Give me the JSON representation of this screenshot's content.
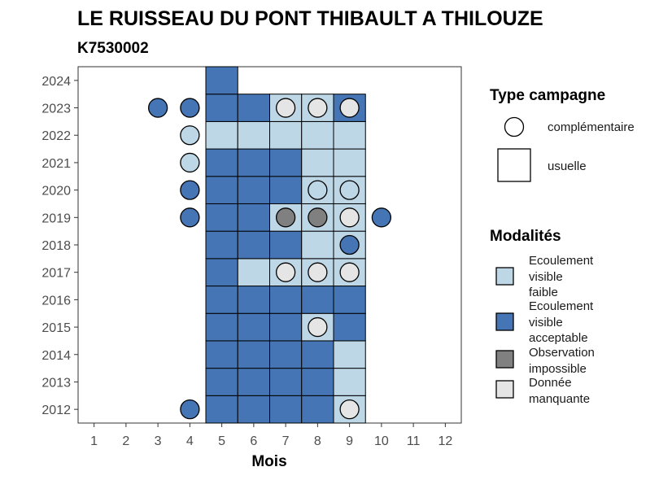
{
  "chart_data": {
    "type": "heatmap",
    "title": "LE RUISSEAU DU PONT THIBAULT A THILOUZE",
    "subtitle": "K7530002",
    "xlabel": "Mois",
    "ylabel": "",
    "x_ticks": [
      "1",
      "2",
      "3",
      "4",
      "5",
      "6",
      "7",
      "8",
      "9",
      "10",
      "11",
      "12"
    ],
    "y_ticks": [
      "2012",
      "2013",
      "2014",
      "2015",
      "2016",
      "2017",
      "2018",
      "2019",
      "2020",
      "2021",
      "2022",
      "2023",
      "2024"
    ],
    "xlim": [
      0.5,
      12.5
    ],
    "ylim": [
      2011.5,
      2024.5
    ],
    "colors": {
      "faible": "#bdd7e7",
      "acceptable": "#4575b4",
      "impossible": "#808080",
      "manquante": "#e5e5e5"
    },
    "legend_type": {
      "title": "Type campagne",
      "items": [
        {
          "label": "complémentaire",
          "shape": "circle"
        },
        {
          "label": "usuelle",
          "shape": "square"
        }
      ]
    },
    "legend_modalites": {
      "title": "Modalités",
      "items": [
        {
          "key": "faible",
          "lines": [
            "Ecoulement",
            "visible",
            "faible"
          ]
        },
        {
          "key": "acceptable",
          "lines": [
            "Ecoulement",
            "visible",
            "acceptable"
          ]
        },
        {
          "key": "impossible",
          "lines": [
            "Observation",
            "impossible"
          ]
        },
        {
          "key": "manquante",
          "lines": [
            "Donnée",
            "manquante"
          ]
        }
      ]
    },
    "usuelle": [
      {
        "year": 2012,
        "months": [
          5,
          6,
          7,
          8,
          9
        ],
        "values": [
          "acceptable",
          "acceptable",
          "acceptable",
          "acceptable",
          "faible"
        ]
      },
      {
        "year": 2013,
        "months": [
          5,
          6,
          7,
          8,
          9
        ],
        "values": [
          "acceptable",
          "acceptable",
          "acceptable",
          "acceptable",
          "faible"
        ]
      },
      {
        "year": 2014,
        "months": [
          5,
          6,
          7,
          8,
          9
        ],
        "values": [
          "acceptable",
          "acceptable",
          "acceptable",
          "acceptable",
          "faible"
        ]
      },
      {
        "year": 2015,
        "months": [
          5,
          6,
          7,
          8,
          9
        ],
        "values": [
          "acceptable",
          "acceptable",
          "acceptable",
          "faible",
          "acceptable"
        ]
      },
      {
        "year": 2016,
        "months": [
          5,
          6,
          7,
          8,
          9
        ],
        "values": [
          "acceptable",
          "acceptable",
          "acceptable",
          "acceptable",
          "acceptable"
        ]
      },
      {
        "year": 2017,
        "months": [
          5,
          6,
          7,
          8,
          9
        ],
        "values": [
          "acceptable",
          "faible",
          "faible",
          "faible",
          "faible"
        ]
      },
      {
        "year": 2018,
        "months": [
          5,
          6,
          7,
          8,
          9
        ],
        "values": [
          "acceptable",
          "acceptable",
          "acceptable",
          "faible",
          "faible"
        ]
      },
      {
        "year": 2019,
        "months": [
          5,
          6,
          7,
          8,
          9
        ],
        "values": [
          "acceptable",
          "acceptable",
          "faible",
          "faible",
          "faible"
        ]
      },
      {
        "year": 2020,
        "months": [
          5,
          6,
          7,
          8,
          9
        ],
        "values": [
          "acceptable",
          "acceptable",
          "acceptable",
          "faible",
          "faible"
        ]
      },
      {
        "year": 2021,
        "months": [
          5,
          6,
          7,
          8,
          9
        ],
        "values": [
          "acceptable",
          "acceptable",
          "acceptable",
          "faible",
          "faible"
        ]
      },
      {
        "year": 2022,
        "months": [
          5,
          6,
          7,
          8,
          9
        ],
        "values": [
          "faible",
          "faible",
          "faible",
          "faible",
          "faible"
        ]
      },
      {
        "year": 2023,
        "months": [
          5,
          6,
          7,
          8,
          9
        ],
        "values": [
          "acceptable",
          "acceptable",
          "faible",
          "faible",
          "acceptable"
        ]
      },
      {
        "year": 2024,
        "months": [
          5
        ],
        "values": [
          "acceptable"
        ]
      }
    ],
    "complementaire": [
      {
        "year": 2012,
        "month": 4,
        "value": "acceptable"
      },
      {
        "year": 2012,
        "month": 9,
        "value": "manquante"
      },
      {
        "year": 2015,
        "month": 8,
        "value": "manquante"
      },
      {
        "year": 2017,
        "month": 7,
        "value": "manquante"
      },
      {
        "year": 2017,
        "month": 8,
        "value": "manquante"
      },
      {
        "year": 2017,
        "month": 9,
        "value": "manquante"
      },
      {
        "year": 2018,
        "month": 9,
        "value": "acceptable"
      },
      {
        "year": 2019,
        "month": 4,
        "value": "acceptable"
      },
      {
        "year": 2019,
        "month": 7,
        "value": "impossible"
      },
      {
        "year": 2019,
        "month": 8,
        "value": "impossible"
      },
      {
        "year": 2019,
        "month": 9,
        "value": "manquante"
      },
      {
        "year": 2019,
        "month": 10,
        "value": "acceptable"
      },
      {
        "year": 2020,
        "month": 4,
        "value": "acceptable"
      },
      {
        "year": 2020,
        "month": 8,
        "value": "faible"
      },
      {
        "year": 2020,
        "month": 9,
        "value": "faible"
      },
      {
        "year": 2021,
        "month": 4,
        "value": "faible"
      },
      {
        "year": 2022,
        "month": 4,
        "value": "faible"
      },
      {
        "year": 2023,
        "month": 3,
        "value": "acceptable"
      },
      {
        "year": 2023,
        "month": 4,
        "value": "acceptable"
      },
      {
        "year": 2023,
        "month": 7,
        "value": "manquante"
      },
      {
        "year": 2023,
        "month": 8,
        "value": "manquante"
      },
      {
        "year": 2023,
        "month": 9,
        "value": "manquante"
      }
    ]
  }
}
